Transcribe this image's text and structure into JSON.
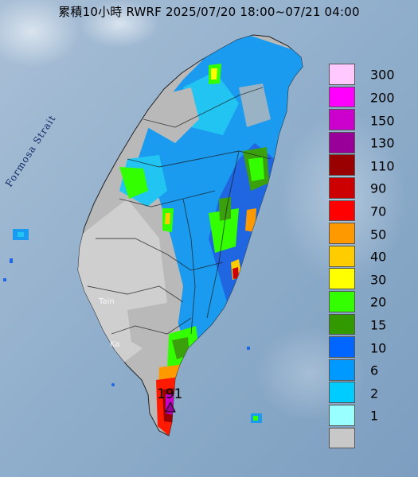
{
  "title": "累積10小時 RWRF 2025/07/20 18:00~07/21 04:00",
  "strait_label": "Formosa Strait",
  "place_labels": {
    "tainan": "Tain",
    "kaohsiung": "Ka"
  },
  "max_value_label": "191",
  "legend": {
    "items": [
      {
        "label": "300",
        "color": "#ffc8ff"
      },
      {
        "label": "200",
        "color": "#ff00ff"
      },
      {
        "label": "150",
        "color": "#cc00cc"
      },
      {
        "label": "130",
        "color": "#990099"
      },
      {
        "label": "110",
        "color": "#990000"
      },
      {
        "label": "90",
        "color": "#cc0000"
      },
      {
        "label": "70",
        "color": "#ff0000"
      },
      {
        "label": "50",
        "color": "#ff9900"
      },
      {
        "label": "40",
        "color": "#ffcc00"
      },
      {
        "label": "30",
        "color": "#ffff00"
      },
      {
        "label": "20",
        "color": "#33ff00"
      },
      {
        "label": "15",
        "color": "#339900"
      },
      {
        "label": "10",
        "color": "#0066ff"
      },
      {
        "label": "6",
        "color": "#0099ff"
      },
      {
        "label": "2",
        "color": "#00ccff"
      },
      {
        "label": "1",
        "color": "#99ffff"
      },
      {
        "label": "",
        "color": "#c8c8c8"
      }
    ]
  }
}
